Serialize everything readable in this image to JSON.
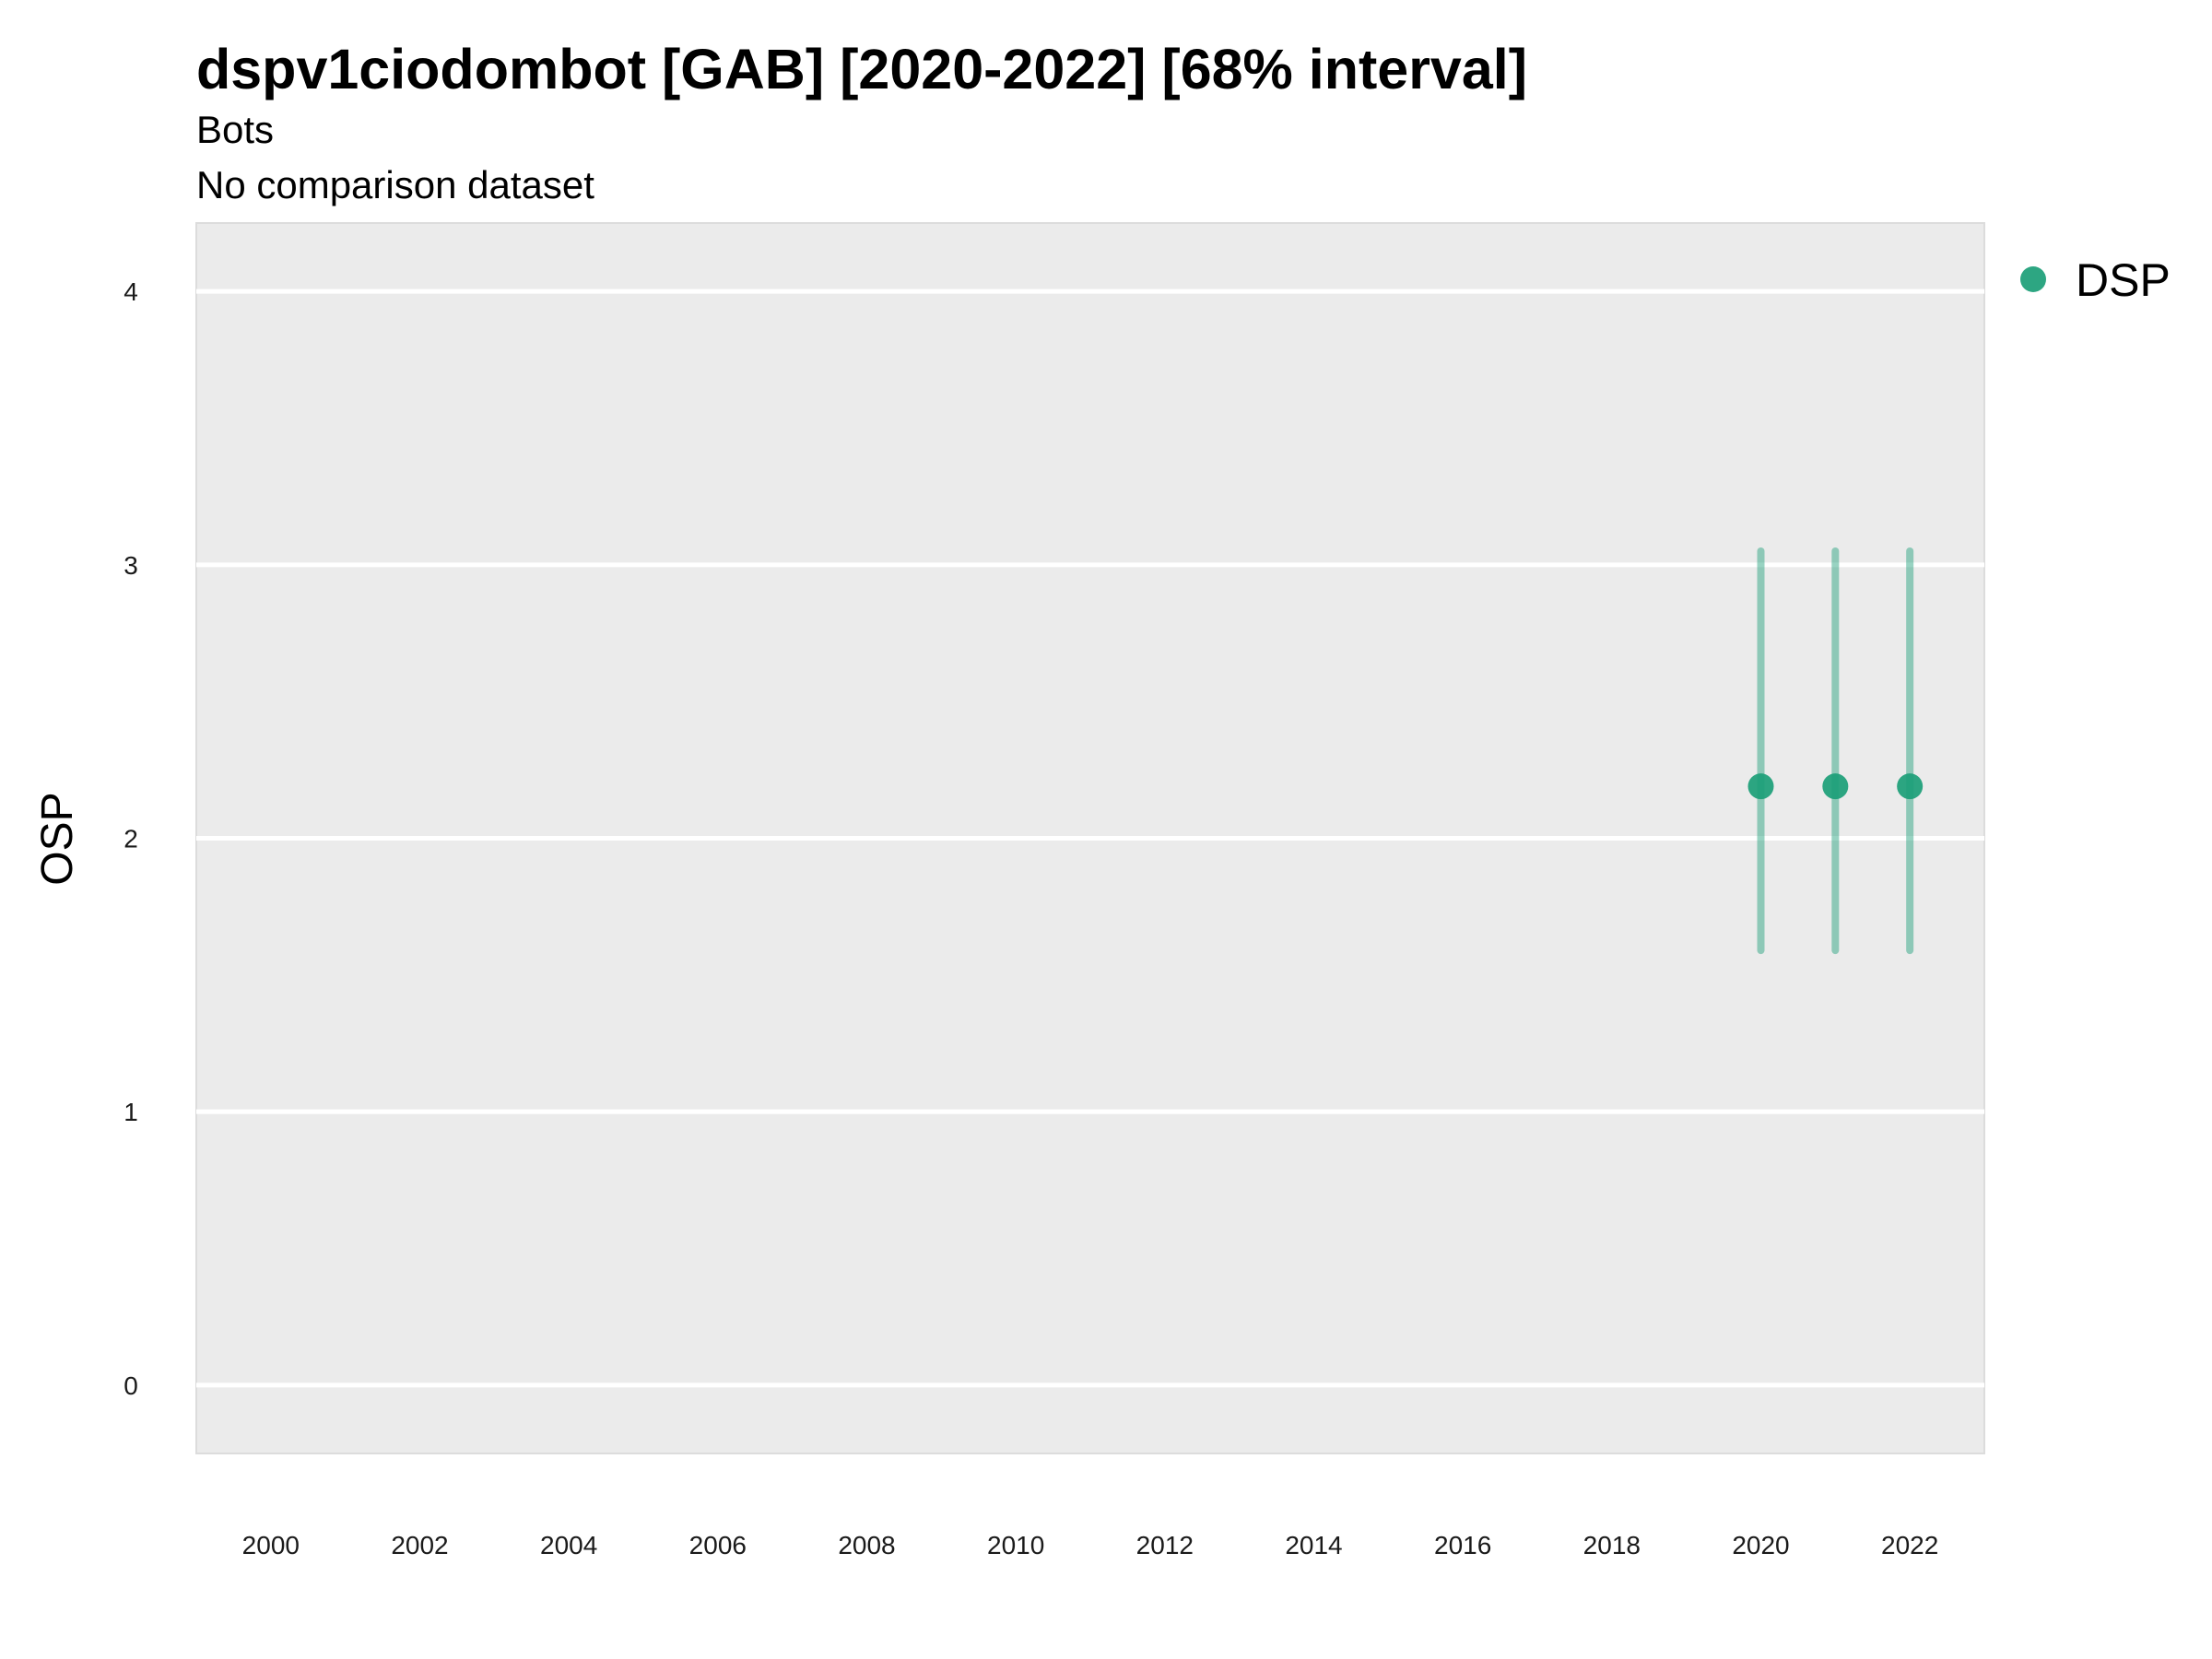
{
  "chart_data": {
    "type": "scatter",
    "title": "dspv1ciodombot [GAB] [2020-2022] [68% interval]",
    "subtitle": "Bots",
    "caption_line": "No comparison dataset",
    "xlabel": "",
    "ylabel": "OSP",
    "xlim": [
      1999,
      2023
    ],
    "ylim": [
      -0.25,
      4.25
    ],
    "x_ticks": [
      2000,
      2002,
      2004,
      2006,
      2008,
      2010,
      2012,
      2014,
      2016,
      2018,
      2020,
      2022
    ],
    "y_ticks": [
      0,
      1,
      2,
      3,
      4
    ],
    "grid": true,
    "legend_position": "top-right",
    "series": [
      {
        "name": "DSP",
        "color": "#1b9e77",
        "points": [
          {
            "x": 2020,
            "y": 2.19,
            "lower": 1.59,
            "upper": 3.05
          },
          {
            "x": 2021,
            "y": 2.19,
            "lower": 1.59,
            "upper": 3.05
          },
          {
            "x": 2022,
            "y": 2.19,
            "lower": 1.59,
            "upper": 3.05
          }
        ]
      }
    ]
  }
}
